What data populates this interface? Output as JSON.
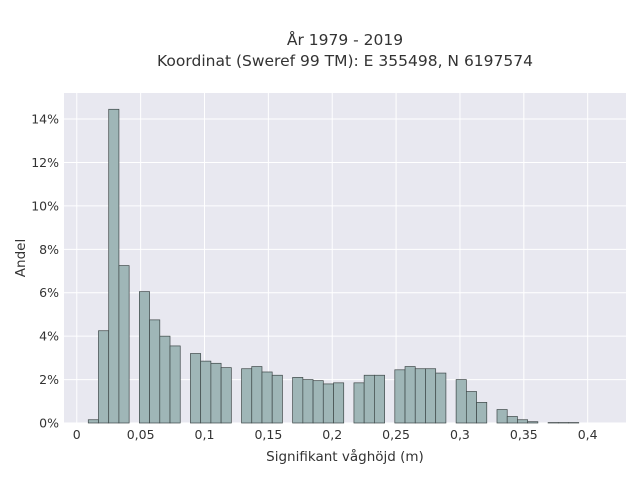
{
  "chart_data": {
    "type": "bar",
    "title_line1": "År 1979 - 2019",
    "title_line2": "Koordinat (Sweref 99 TM): E 355498, N 6197574",
    "xlabel": "Signifikant våghöjd (m)",
    "ylabel": "Andel",
    "xlim": [
      -0.01,
      0.43
    ],
    "ylim": [
      0,
      15.2
    ],
    "x_ticks": [
      0,
      0.05,
      0.1,
      0.15,
      0.2,
      0.25,
      0.3,
      0.35,
      0.4
    ],
    "x_tick_labels": [
      "0",
      "0,05",
      "0,1",
      "0,15",
      "0,2",
      "0,25",
      "0,3",
      "0,35",
      "0,4"
    ],
    "y_ticks": [
      0,
      2,
      4,
      6,
      8,
      10,
      12,
      14
    ],
    "y_tick_labels": [
      "0%",
      "2%",
      "4%",
      "6%",
      "8%",
      "10%",
      "12%",
      "14%"
    ],
    "bin_width": 0.008,
    "bins": [
      {
        "x0": 0.009,
        "value": 0.15
      },
      {
        "x0": 0.017,
        "value": 4.25
      },
      {
        "x0": 0.025,
        "value": 14.45
      },
      {
        "x0": 0.033,
        "value": 7.25
      },
      {
        "x0": 0.049,
        "value": 6.05
      },
      {
        "x0": 0.057,
        "value": 4.75
      },
      {
        "x0": 0.065,
        "value": 4.0
      },
      {
        "x0": 0.073,
        "value": 3.55
      },
      {
        "x0": 0.089,
        "value": 3.2
      },
      {
        "x0": 0.097,
        "value": 2.85
      },
      {
        "x0": 0.105,
        "value": 2.75
      },
      {
        "x0": 0.113,
        "value": 2.55
      },
      {
        "x0": 0.129,
        "value": 2.5
      },
      {
        "x0": 0.137,
        "value": 2.6
      },
      {
        "x0": 0.145,
        "value": 2.35
      },
      {
        "x0": 0.153,
        "value": 2.2
      },
      {
        "x0": 0.169,
        "value": 2.1
      },
      {
        "x0": 0.177,
        "value": 2.0
      },
      {
        "x0": 0.185,
        "value": 1.95
      },
      {
        "x0": 0.193,
        "value": 1.8
      },
      {
        "x0": 0.201,
        "value": 1.85
      },
      {
        "x0": 0.217,
        "value": 1.85
      },
      {
        "x0": 0.225,
        "value": 2.2
      },
      {
        "x0": 0.233,
        "value": 2.2
      },
      {
        "x0": 0.249,
        "value": 2.45
      },
      {
        "x0": 0.257,
        "value": 2.6
      },
      {
        "x0": 0.265,
        "value": 2.5
      },
      {
        "x0": 0.273,
        "value": 2.5
      },
      {
        "x0": 0.281,
        "value": 2.3
      },
      {
        "x0": 0.297,
        "value": 2.0
      },
      {
        "x0": 0.305,
        "value": 1.45
      },
      {
        "x0": 0.313,
        "value": 0.95
      },
      {
        "x0": 0.329,
        "value": 0.62
      },
      {
        "x0": 0.337,
        "value": 0.3
      },
      {
        "x0": 0.345,
        "value": 0.15
      },
      {
        "x0": 0.353,
        "value": 0.06
      },
      {
        "x0": 0.369,
        "value": 0.02
      },
      {
        "x0": 0.377,
        "value": 0.02
      },
      {
        "x0": 0.385,
        "value": 0.02
      }
    ],
    "colors": {
      "bar_fill": "#9fb6b7",
      "bar_edge": "#3d4747",
      "plot_background": "#e8e8f0",
      "grid": "#ffffff"
    },
    "grid": true
  }
}
